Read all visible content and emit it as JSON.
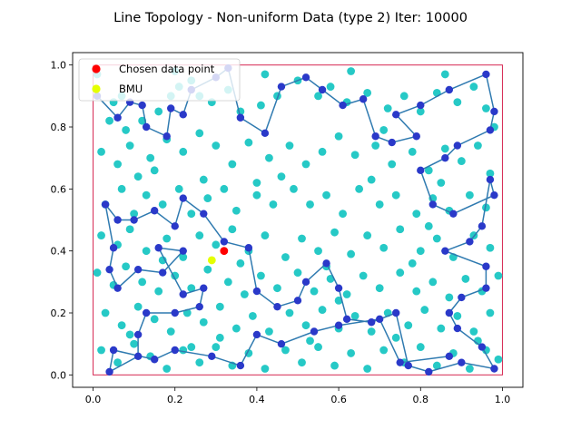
{
  "chart_data": {
    "type": "scatter",
    "title": "Line Topology - Non-uniform Data (type 2) Iter: 10000",
    "xlabel": "",
    "ylabel": "",
    "xlim": [
      -0.05,
      1.05
    ],
    "ylim": [
      -0.04,
      1.04
    ],
    "xticks": [
      {
        "value": 0.0,
        "label": "0.0"
      },
      {
        "value": 0.2,
        "label": "0.2"
      },
      {
        "value": 0.4,
        "label": "0.4"
      },
      {
        "value": 0.6,
        "label": "0.6"
      },
      {
        "value": 0.8,
        "label": "0.8"
      },
      {
        "value": 1.0,
        "label": "1.0"
      }
    ],
    "yticks": [
      {
        "value": 0.0,
        "label": "0.0"
      },
      {
        "value": 0.2,
        "label": "0.2"
      },
      {
        "value": 0.4,
        "label": "0.4"
      },
      {
        "value": 0.6,
        "label": "0.6"
      },
      {
        "value": 0.8,
        "label": "0.8"
      },
      {
        "value": 1.0,
        "label": "1.0"
      }
    ],
    "grid": false,
    "legend": {
      "position": "top-left",
      "entries": [
        {
          "label": "Chosen data point",
          "color": "#ff0000"
        },
        {
          "label": "BMU",
          "color": "#e5ff00"
        }
      ]
    },
    "boundary": {
      "x": [
        0,
        1
      ],
      "y": [
        0,
        1
      ],
      "color": "#d62752"
    },
    "data_points": [
      [
        0.01,
        0.97
      ],
      [
        0.05,
        0.88
      ],
      [
        0.07,
        0.9
      ],
      [
        0.04,
        0.82
      ],
      [
        0.08,
        0.79
      ],
      [
        0.12,
        0.82
      ],
      [
        0.16,
        0.85
      ],
      [
        0.19,
        0.9
      ],
      [
        0.21,
        0.93
      ],
      [
        0.24,
        0.95
      ],
      [
        0.26,
        0.9
      ],
      [
        0.29,
        0.88
      ],
      [
        0.33,
        0.92
      ],
      [
        0.36,
        0.85
      ],
      [
        0.41,
        0.87
      ],
      [
        0.45,
        0.9
      ],
      [
        0.5,
        0.95
      ],
      [
        0.55,
        0.9
      ],
      [
        0.58,
        0.93
      ],
      [
        0.62,
        0.88
      ],
      [
        0.67,
        0.91
      ],
      [
        0.72,
        0.86
      ],
      [
        0.76,
        0.9
      ],
      [
        0.8,
        0.85
      ],
      [
        0.84,
        0.91
      ],
      [
        0.89,
        0.88
      ],
      [
        0.93,
        0.93
      ],
      [
        0.96,
        0.86
      ],
      [
        0.98,
        0.8
      ],
      [
        0.02,
        0.72
      ],
      [
        0.06,
        0.68
      ],
      [
        0.09,
        0.74
      ],
      [
        0.14,
        0.7
      ],
      [
        0.18,
        0.76
      ],
      [
        0.22,
        0.72
      ],
      [
        0.26,
        0.78
      ],
      [
        0.3,
        0.74
      ],
      [
        0.34,
        0.68
      ],
      [
        0.38,
        0.75
      ],
      [
        0.43,
        0.7
      ],
      [
        0.48,
        0.74
      ],
      [
        0.52,
        0.68
      ],
      [
        0.56,
        0.72
      ],
      [
        0.6,
        0.77
      ],
      [
        0.64,
        0.71
      ],
      [
        0.69,
        0.74
      ],
      [
        0.73,
        0.68
      ],
      [
        0.78,
        0.72
      ],
      [
        0.82,
        0.66
      ],
      [
        0.86,
        0.73
      ],
      [
        0.9,
        0.69
      ],
      [
        0.94,
        0.74
      ],
      [
        0.97,
        0.65
      ],
      [
        0.03,
        0.55
      ],
      [
        0.07,
        0.6
      ],
      [
        0.1,
        0.52
      ],
      [
        0.13,
        0.58
      ],
      [
        0.17,
        0.55
      ],
      [
        0.21,
        0.6
      ],
      [
        0.24,
        0.52
      ],
      [
        0.28,
        0.57
      ],
      [
        0.32,
        0.6
      ],
      [
        0.35,
        0.53
      ],
      [
        0.4,
        0.58
      ],
      [
        0.44,
        0.55
      ],
      [
        0.49,
        0.6
      ],
      [
        0.53,
        0.55
      ],
      [
        0.57,
        0.58
      ],
      [
        0.61,
        0.52
      ],
      [
        0.65,
        0.6
      ],
      [
        0.7,
        0.55
      ],
      [
        0.74,
        0.58
      ],
      [
        0.79,
        0.52
      ],
      [
        0.83,
        0.57
      ],
      [
        0.87,
        0.53
      ],
      [
        0.92,
        0.58
      ],
      [
        0.96,
        0.54
      ],
      [
        0.02,
        0.45
      ],
      [
        0.06,
        0.42
      ],
      [
        0.09,
        0.47
      ],
      [
        0.13,
        0.4
      ],
      [
        0.18,
        0.44
      ],
      [
        0.22,
        0.38
      ],
      [
        0.26,
        0.45
      ],
      [
        0.3,
        0.42
      ],
      [
        0.34,
        0.47
      ],
      [
        0.38,
        0.4
      ],
      [
        0.42,
        0.45
      ],
      [
        0.47,
        0.38
      ],
      [
        0.51,
        0.44
      ],
      [
        0.55,
        0.4
      ],
      [
        0.59,
        0.46
      ],
      [
        0.63,
        0.39
      ],
      [
        0.67,
        0.45
      ],
      [
        0.71,
        0.41
      ],
      [
        0.75,
        0.47
      ],
      [
        0.8,
        0.4
      ],
      [
        0.84,
        0.44
      ],
      [
        0.88,
        0.38
      ],
      [
        0.93,
        0.45
      ],
      [
        0.97,
        0.41
      ],
      [
        0.01,
        0.33
      ],
      [
        0.05,
        0.29
      ],
      [
        0.08,
        0.35
      ],
      [
        0.12,
        0.3
      ],
      [
        0.16,
        0.27
      ],
      [
        0.2,
        0.32
      ],
      [
        0.24,
        0.28
      ],
      [
        0.28,
        0.34
      ],
      [
        0.33,
        0.3
      ],
      [
        0.37,
        0.26
      ],
      [
        0.41,
        0.32
      ],
      [
        0.45,
        0.28
      ],
      [
        0.5,
        0.33
      ],
      [
        0.54,
        0.27
      ],
      [
        0.58,
        0.31
      ],
      [
        0.62,
        0.26
      ],
      [
        0.66,
        0.32
      ],
      [
        0.7,
        0.28
      ],
      [
        0.75,
        0.33
      ],
      [
        0.79,
        0.27
      ],
      [
        0.83,
        0.3
      ],
      [
        0.87,
        0.25
      ],
      [
        0.91,
        0.31
      ],
      [
        0.95,
        0.27
      ],
      [
        0.99,
        0.32
      ],
      [
        0.03,
        0.2
      ],
      [
        0.07,
        0.16
      ],
      [
        0.11,
        0.22
      ],
      [
        0.15,
        0.18
      ],
      [
        0.19,
        0.14
      ],
      [
        0.23,
        0.2
      ],
      [
        0.27,
        0.17
      ],
      [
        0.31,
        0.22
      ],
      [
        0.35,
        0.15
      ],
      [
        0.39,
        0.19
      ],
      [
        0.43,
        0.14
      ],
      [
        0.48,
        0.2
      ],
      [
        0.52,
        0.16
      ],
      [
        0.56,
        0.21
      ],
      [
        0.6,
        0.15
      ],
      [
        0.64,
        0.19
      ],
      [
        0.68,
        0.14
      ],
      [
        0.72,
        0.2
      ],
      [
        0.77,
        0.16
      ],
      [
        0.81,
        0.21
      ],
      [
        0.85,
        0.15
      ],
      [
        0.89,
        0.19
      ],
      [
        0.93,
        0.14
      ],
      [
        0.97,
        0.2
      ],
      [
        0.02,
        0.08
      ],
      [
        0.06,
        0.04
      ],
      [
        0.1,
        0.1
      ],
      [
        0.14,
        0.06
      ],
      [
        0.18,
        0.02
      ],
      [
        0.22,
        0.08
      ],
      [
        0.26,
        0.04
      ],
      [
        0.3,
        0.09
      ],
      [
        0.34,
        0.03
      ],
      [
        0.38,
        0.07
      ],
      [
        0.42,
        0.02
      ],
      [
        0.47,
        0.08
      ],
      [
        0.51,
        0.04
      ],
      [
        0.55,
        0.09
      ],
      [
        0.59,
        0.03
      ],
      [
        0.63,
        0.07
      ],
      [
        0.67,
        0.02
      ],
      [
        0.71,
        0.08
      ],
      [
        0.76,
        0.04
      ],
      [
        0.8,
        0.09
      ],
      [
        0.84,
        0.03
      ],
      [
        0.88,
        0.07
      ],
      [
        0.92,
        0.02
      ],
      [
        0.96,
        0.08
      ],
      [
        0.99,
        0.05
      ],
      [
        0.11,
        0.64
      ],
      [
        0.27,
        0.63
      ],
      [
        0.46,
        0.64
      ],
      [
        0.68,
        0.63
      ],
      [
        0.85,
        0.62
      ],
      [
        0.17,
        0.37
      ],
      [
        0.36,
        0.36
      ],
      [
        0.57,
        0.35
      ],
      [
        0.78,
        0.36
      ],
      [
        0.09,
        0.13
      ],
      [
        0.31,
        0.12
      ],
      [
        0.53,
        0.11
      ],
      [
        0.74,
        0.12
      ],
      [
        0.94,
        0.11
      ],
      [
        0.2,
        0.98
      ],
      [
        0.42,
        0.97
      ],
      [
        0.63,
        0.98
      ],
      [
        0.86,
        0.97
      ],
      [
        0.4,
        0.62
      ],
      [
        0.6,
        0.24
      ],
      [
        0.24,
        0.09
      ],
      [
        0.82,
        0.48
      ],
      [
        0.15,
        0.66
      ],
      [
        0.71,
        0.79
      ]
    ],
    "neurons": [
      [
        0.01,
        0.9
      ],
      [
        0.06,
        0.83
      ],
      [
        0.09,
        0.88
      ],
      [
        0.12,
        0.87
      ],
      [
        0.13,
        0.8
      ],
      [
        0.18,
        0.77
      ],
      [
        0.19,
        0.86
      ],
      [
        0.22,
        0.84
      ],
      [
        0.24,
        0.92
      ],
      [
        0.3,
        0.96
      ],
      [
        0.33,
        0.99
      ],
      [
        0.36,
        0.83
      ],
      [
        0.42,
        0.78
      ],
      [
        0.46,
        0.93
      ],
      [
        0.52,
        0.96
      ],
      [
        0.56,
        0.92
      ],
      [
        0.61,
        0.87
      ],
      [
        0.66,
        0.89
      ],
      [
        0.69,
        0.77
      ],
      [
        0.73,
        0.75
      ],
      [
        0.79,
        0.77
      ],
      [
        0.74,
        0.84
      ],
      [
        0.8,
        0.87
      ],
      [
        0.87,
        0.92
      ],
      [
        0.96,
        0.97
      ],
      [
        0.98,
        0.85
      ],
      [
        0.97,
        0.79
      ],
      [
        0.89,
        0.74
      ],
      [
        0.86,
        0.7
      ],
      [
        0.8,
        0.66
      ],
      [
        0.83,
        0.55
      ],
      [
        0.88,
        0.52
      ],
      [
        0.98,
        0.58
      ],
      [
        0.97,
        0.63
      ],
      [
        0.95,
        0.48
      ],
      [
        0.92,
        0.43
      ],
      [
        0.86,
        0.4
      ],
      [
        0.96,
        0.35
      ],
      [
        0.96,
        0.28
      ],
      [
        0.9,
        0.25
      ],
      [
        0.87,
        0.2
      ],
      [
        0.89,
        0.15
      ],
      [
        0.95,
        0.09
      ],
      [
        0.98,
        0.02
      ],
      [
        0.9,
        0.04
      ],
      [
        0.82,
        0.01
      ],
      [
        0.77,
        0.03
      ],
      [
        0.74,
        0.2
      ],
      [
        0.68,
        0.17
      ],
      [
        0.62,
        0.18
      ],
      [
        0.6,
        0.28
      ],
      [
        0.57,
        0.36
      ],
      [
        0.52,
        0.3
      ],
      [
        0.5,
        0.24
      ],
      [
        0.45,
        0.22
      ],
      [
        0.4,
        0.27
      ],
      [
        0.38,
        0.41
      ],
      [
        0.32,
        0.43
      ],
      [
        0.27,
        0.52
      ],
      [
        0.22,
        0.57
      ],
      [
        0.2,
        0.48
      ],
      [
        0.15,
        0.53
      ],
      [
        0.1,
        0.5
      ],
      [
        0.06,
        0.5
      ],
      [
        0.03,
        0.55
      ],
      [
        0.05,
        0.41
      ],
      [
        0.04,
        0.34
      ],
      [
        0.06,
        0.28
      ],
      [
        0.11,
        0.34
      ],
      [
        0.17,
        0.33
      ],
      [
        0.22,
        0.4
      ],
      [
        0.16,
        0.41
      ],
      [
        0.22,
        0.26
      ],
      [
        0.27,
        0.28
      ],
      [
        0.26,
        0.22
      ],
      [
        0.2,
        0.2
      ],
      [
        0.13,
        0.2
      ],
      [
        0.11,
        0.13
      ],
      [
        0.11,
        0.06
      ],
      [
        0.04,
        0.01
      ],
      [
        0.05,
        0.08
      ],
      [
        0.15,
        0.05
      ],
      [
        0.2,
        0.08
      ],
      [
        0.29,
        0.06
      ],
      [
        0.36,
        0.03
      ],
      [
        0.4,
        0.13
      ],
      [
        0.46,
        0.1
      ],
      [
        0.54,
        0.14
      ],
      [
        0.6,
        0.16
      ],
      [
        0.7,
        0.18
      ],
      [
        0.75,
        0.04
      ],
      [
        0.87,
        0.06
      ]
    ],
    "chosen_point": [
      0.32,
      0.4
    ],
    "bmu": [
      0.29,
      0.37
    ],
    "colors": {
      "data_points": "#26c9c6",
      "neurons": "#2a39c9",
      "topology_line": "#2f7ab0",
      "chosen_point": "#ff0000",
      "bmu": "#e5ff00"
    }
  }
}
